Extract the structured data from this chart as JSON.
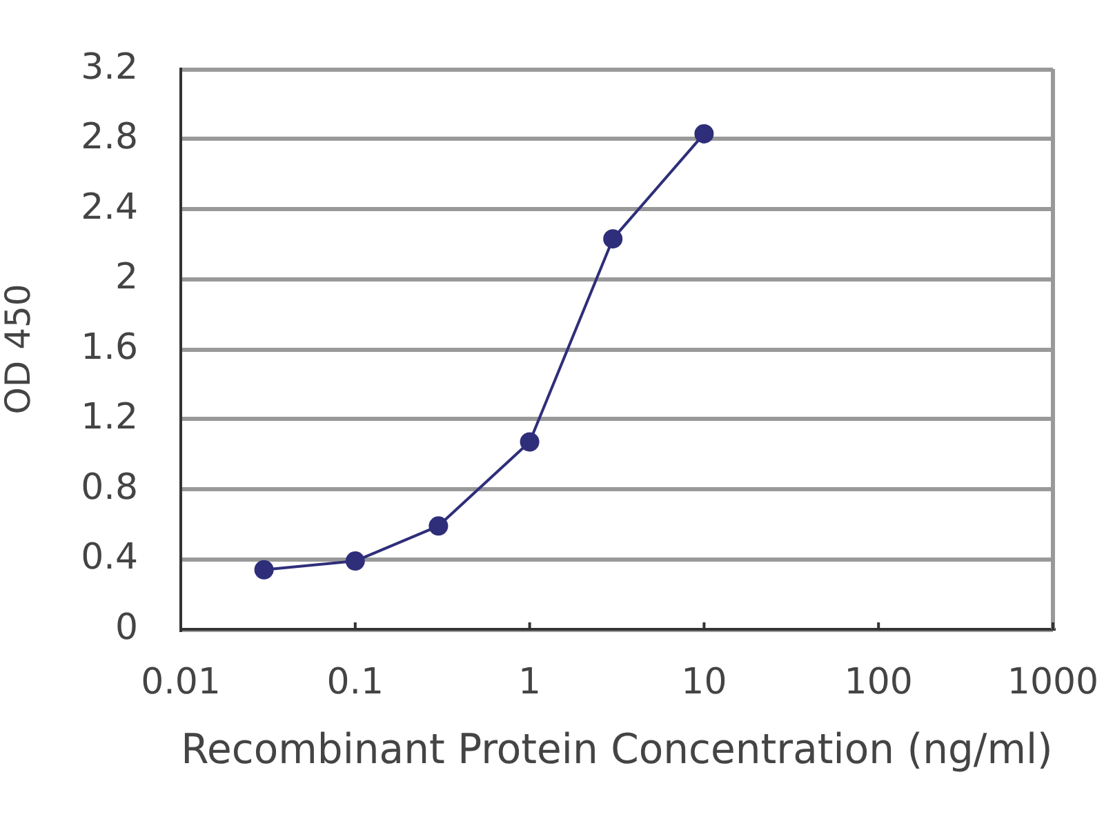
{
  "chart_data": {
    "type": "line",
    "xlabel": "Recombinant Protein Concentration (ng/ml)",
    "ylabel": "OD 450",
    "x": [
      0.03,
      0.1,
      0.3,
      1,
      3,
      10
    ],
    "series": [
      {
        "color": "#2e2e7a",
        "values": [
          0.34,
          0.39,
          0.59,
          1.07,
          2.23,
          2.83
        ]
      }
    ],
    "xlim": [
      0.01,
      1000
    ],
    "xticks": [
      0.01,
      0.1,
      1,
      10,
      100,
      1000
    ],
    "ylim": [
      0,
      3.2
    ],
    "yticks": [
      0,
      0.4,
      0.8,
      1.2,
      1.6,
      2,
      2.4,
      2.8,
      3.2
    ],
    "log": "x",
    "grid": "y",
    "legend": false,
    "marker": "circle",
    "line_style": "solid"
  }
}
